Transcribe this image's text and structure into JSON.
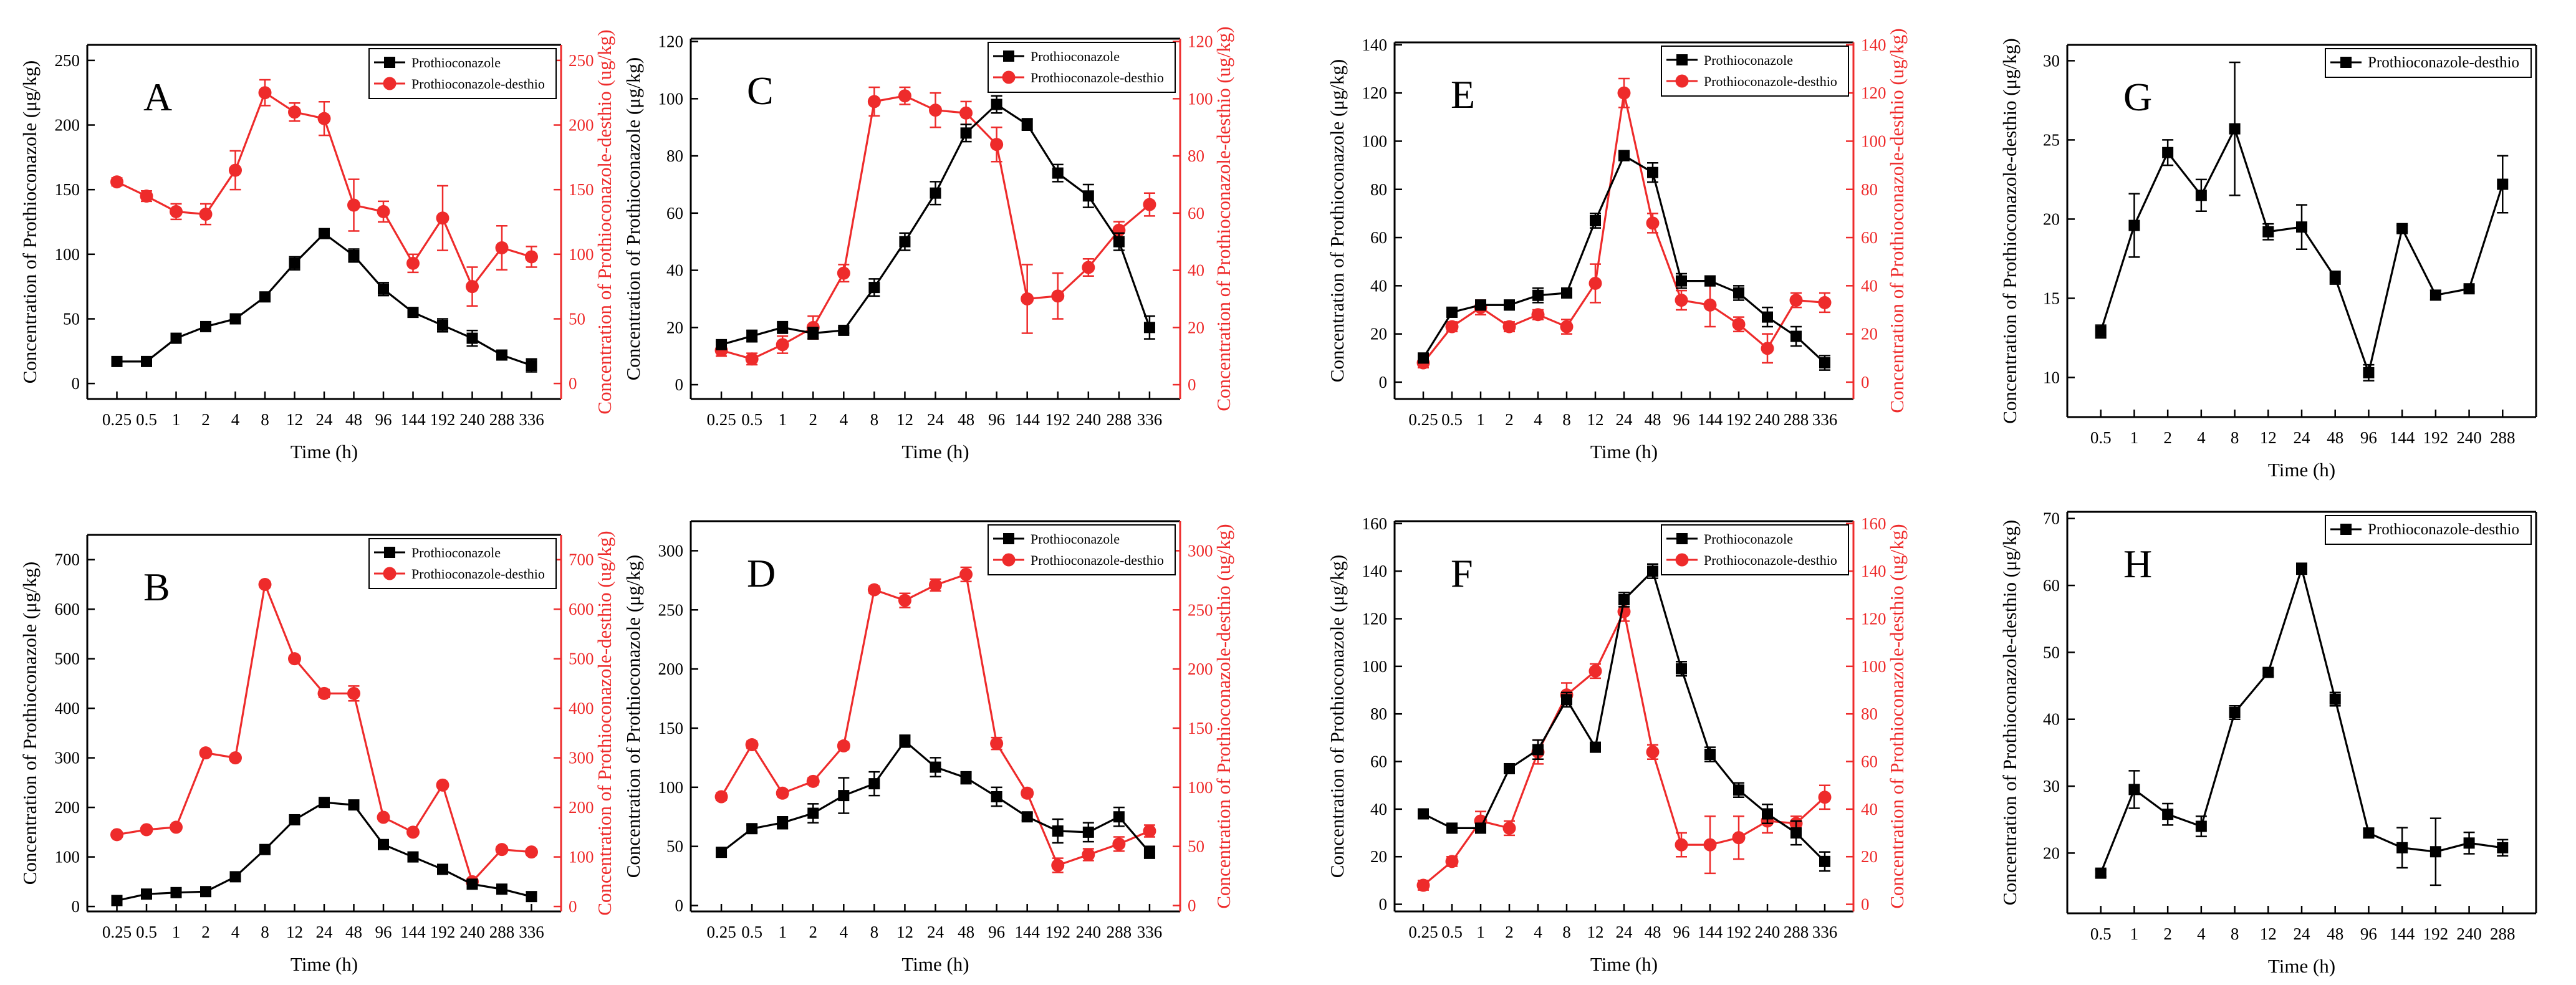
{
  "colors": {
    "black_series": "#000000",
    "red_series": "#ee2b2b",
    "axis": "#000000"
  },
  "chart_data": [
    {
      "panel": "A",
      "type": "line",
      "dual_axis": true,
      "xlabel": "Time (h)",
      "ylabel_left": "Concentration of Prothioconazole (μg/kg)",
      "ylabel_right": "Concentration of Prothioconazole-desthio (ug/kg)",
      "categories": [
        "0.25",
        "0.5",
        "1",
        "2",
        "4",
        "8",
        "12",
        "24",
        "48",
        "96",
        "144",
        "192",
        "240",
        "288",
        "336"
      ],
      "ylim_left": [
        -12,
        262
      ],
      "yticks_left": [
        0,
        50,
        100,
        150,
        200,
        250
      ],
      "ylim_right": [
        -12,
        262
      ],
      "yticks_right": [
        0,
        50,
        100,
        150,
        200,
        250
      ],
      "legend": "top-right",
      "series": [
        {
          "name": "Prothioconazole",
          "color": "black",
          "marker": "square",
          "axis": "left",
          "values": [
            17,
            17,
            35,
            44,
            50,
            67,
            93,
            116,
            99,
            73,
            55,
            45,
            35,
            22,
            14
          ],
          "errors": [
            2,
            2,
            2,
            2,
            2,
            3,
            5,
            3,
            5,
            5,
            3,
            5,
            6,
            3,
            5
          ]
        },
        {
          "name": "Prothioconazole-desthio",
          "color": "red",
          "marker": "circle",
          "axis": "right",
          "values": [
            156,
            145,
            133,
            131,
            165,
            225,
            210,
            205,
            138,
            133,
            93,
            128,
            75,
            105,
            98
          ],
          "errors": [
            3,
            4,
            6,
            8,
            15,
            10,
            7,
            13,
            20,
            8,
            7,
            25,
            15,
            17,
            8
          ]
        }
      ]
    },
    {
      "panel": "C",
      "type": "line",
      "dual_axis": true,
      "xlabel": "Time (h)",
      "ylabel_left": "Concentration of Prothioconazole (μg/kg)",
      "ylabel_right": "Concentration of Prothioconazole-desthio (ug/kg)",
      "categories": [
        "0.25",
        "0.5",
        "1",
        "2",
        "4",
        "8",
        "12",
        "24",
        "48",
        "96",
        "144",
        "192",
        "240",
        "288",
        "336"
      ],
      "ylim_left": [
        -5,
        121
      ],
      "yticks_left": [
        0,
        20,
        40,
        60,
        80,
        100,
        120
      ],
      "ylim_right": [
        -5,
        121
      ],
      "yticks_right": [
        0,
        20,
        40,
        60,
        80,
        100,
        120
      ],
      "legend": "top-right",
      "series": [
        {
          "name": "Prothioconazole",
          "color": "black",
          "marker": "square",
          "axis": "left",
          "values": [
            14,
            17,
            20,
            18,
            19,
            34,
            50,
            67,
            88,
            98,
            91,
            74,
            66,
            50,
            20
          ],
          "errors": [
            1,
            2,
            2,
            2,
            1,
            3,
            3,
            4,
            3,
            3,
            2,
            3,
            4,
            3,
            4
          ]
        },
        {
          "name": "Prothioconazole-desthio",
          "color": "red",
          "marker": "circle",
          "axis": "right",
          "values": [
            12,
            9,
            14,
            20,
            39,
            99,
            101,
            96,
            95,
            84,
            30,
            31,
            41,
            54,
            63
          ],
          "errors": [
            2,
            2,
            3,
            4,
            3,
            5,
            3,
            6,
            4,
            6,
            12,
            8,
            3,
            3,
            4
          ]
        }
      ]
    },
    {
      "panel": "E",
      "type": "line",
      "dual_axis": true,
      "xlabel": "Time (h)",
      "ylabel_left": "Concentration of Prothioconazole (μg/kg)",
      "ylabel_right": "Concentration of Prothioconazole-desthio (ug/kg)",
      "categories": [
        "0.25",
        "0.5",
        "1",
        "2",
        "4",
        "8",
        "12",
        "24",
        "48",
        "96",
        "144",
        "192",
        "240",
        "288",
        "336"
      ],
      "ylim_left": [
        -7,
        141
      ],
      "yticks_left": [
        0,
        20,
        40,
        60,
        80,
        100,
        120,
        140
      ],
      "ylim_right": [
        -7,
        141
      ],
      "yticks_right": [
        0,
        20,
        40,
        60,
        80,
        100,
        120,
        140
      ],
      "legend": "top-right",
      "series": [
        {
          "name": "Prothioconazole",
          "color": "black",
          "marker": "square",
          "axis": "left",
          "values": [
            10,
            29,
            32,
            32,
            36,
            37,
            67,
            94,
            87,
            42,
            42,
            37,
            27,
            19,
            8
          ],
          "errors": [
            2,
            2,
            2,
            2,
            3,
            2,
            3,
            2,
            4,
            3,
            2,
            3,
            4,
            4,
            3
          ]
        },
        {
          "name": "Prothioconazole-desthio",
          "color": "red",
          "marker": "circle",
          "axis": "right",
          "values": [
            8,
            23,
            31,
            23,
            28,
            23,
            41,
            120,
            66,
            34,
            32,
            24,
            14,
            34,
            33
          ],
          "errors": [
            2,
            2,
            3,
            2,
            2,
            3,
            8,
            6,
            4,
            4,
            9,
            3,
            6,
            3,
            4
          ]
        }
      ]
    },
    {
      "panel": "G",
      "type": "line",
      "dual_axis": false,
      "xlabel": "Time (h)",
      "ylabel_left": "Concentration of Prothioconazole-desthio (μg/kg)",
      "categories": [
        "0.5",
        "1",
        "2",
        "4",
        "8",
        "12",
        "24",
        "48",
        "96",
        "144",
        "192",
        "240",
        "288"
      ],
      "ylim_left": [
        7.5,
        31
      ],
      "yticks_left": [
        10,
        15,
        20,
        25,
        30
      ],
      "legend": "top-right",
      "series": [
        {
          "name": "Prothioconazole-desthio",
          "color": "black",
          "marker": "square",
          "axis": "left",
          "values": [
            12.9,
            19.6,
            24.2,
            21.5,
            25.7,
            19.2,
            19.5,
            16.3,
            10.3,
            19.4,
            15.2,
            15.6,
            22.2
          ],
          "errors": [
            0.4,
            2.0,
            0.8,
            1.0,
            4.2,
            0.5,
            1.4,
            0.4,
            0.5,
            0.2,
            0.3,
            0.2,
            1.8
          ]
        }
      ]
    },
    {
      "panel": "B",
      "type": "line",
      "dual_axis": true,
      "xlabel": "Time (h)",
      "ylabel_left": "Concentration of Prothioconazole (μg/kg)",
      "ylabel_right": "Concentration of Prothioconazole-desthio (ug/kg)",
      "categories": [
        "0.25",
        "0.5",
        "1",
        "2",
        "4",
        "8",
        "12",
        "24",
        "48",
        "96",
        "144",
        "192",
        "240",
        "288",
        "336"
      ],
      "ylim_left": [
        -10,
        750
      ],
      "yticks_left": [
        0,
        100,
        200,
        300,
        400,
        500,
        600,
        700
      ],
      "ylim_right": [
        -10,
        750
      ],
      "yticks_right": [
        0,
        100,
        200,
        300,
        400,
        500,
        600,
        700
      ],
      "legend": "top-right",
      "series": [
        {
          "name": "Prothioconazole",
          "color": "black",
          "marker": "square",
          "axis": "left",
          "values": [
            12,
            25,
            28,
            30,
            60,
            115,
            175,
            210,
            205,
            125,
            100,
            75,
            45,
            35,
            20
          ],
          "errors": [
            3,
            3,
            3,
            3,
            3,
            5,
            5,
            5,
            5,
            8,
            5,
            5,
            5,
            5,
            5
          ]
        },
        {
          "name": "Prothioconazole-desthio",
          "color": "red",
          "marker": "circle",
          "axis": "right",
          "values": [
            145,
            155,
            160,
            310,
            300,
            650,
            500,
            430,
            430,
            180,
            150,
            245,
            50,
            115,
            110
          ],
          "errors": [
            5,
            5,
            5,
            5,
            5,
            5,
            5,
            8,
            15,
            5,
            5,
            5,
            5,
            5,
            5
          ]
        }
      ]
    },
    {
      "panel": "D",
      "type": "line",
      "dual_axis": true,
      "xlabel": "Time (h)",
      "ylabel_left": "Concentration of Prothioconazole (μg/kg)",
      "ylabel_right": "Concentration of Prothioconazole-desthio (ug/kg)",
      "categories": [
        "0.25",
        "0.5",
        "1",
        "2",
        "4",
        "8",
        "12",
        "24",
        "48",
        "96",
        "144",
        "192",
        "240",
        "288",
        "336"
      ],
      "ylim_left": [
        -5,
        325
      ],
      "yticks_left": [
        0,
        50,
        100,
        150,
        200,
        250,
        300
      ],
      "ylim_right": [
        -5,
        325
      ],
      "yticks_right": [
        0,
        50,
        100,
        150,
        200,
        250,
        300
      ],
      "legend": "top-right",
      "series": [
        {
          "name": "Prothioconazole",
          "color": "black",
          "marker": "square",
          "axis": "left",
          "values": [
            45,
            65,
            70,
            78,
            93,
            103,
            139,
            117,
            108,
            92,
            75,
            63,
            62,
            75,
            45
          ],
          "errors": [
            3,
            3,
            5,
            8,
            15,
            10,
            5,
            8,
            5,
            8,
            3,
            10,
            8,
            8,
            5
          ]
        },
        {
          "name": "Prothioconazole-desthio",
          "color": "red",
          "marker": "circle",
          "axis": "right",
          "values": [
            92,
            136,
            95,
            105,
            135,
            267,
            258,
            271,
            280,
            137,
            95,
            34,
            43,
            52,
            63
          ],
          "errors": [
            3,
            3,
            3,
            3,
            3,
            3,
            6,
            5,
            6,
            5,
            3,
            6,
            5,
            6,
            5
          ]
        }
      ]
    },
    {
      "panel": "F",
      "type": "line",
      "dual_axis": true,
      "xlabel": "Time (h)",
      "ylabel_left": "Concentration of Prothioconazole (μg/kg)",
      "ylabel_right": "Concentration of Prothioconazole-desthio (ug/kg)",
      "categories": [
        "0.25",
        "0.5",
        "1",
        "2",
        "4",
        "8",
        "12",
        "24",
        "48",
        "96",
        "144",
        "192",
        "240",
        "288",
        "336"
      ],
      "ylim_left": [
        -3,
        161
      ],
      "yticks_left": [
        0,
        20,
        40,
        60,
        80,
        100,
        120,
        140,
        160
      ],
      "ylim_right": [
        -3,
        161
      ],
      "yticks_right": [
        0,
        20,
        40,
        60,
        80,
        100,
        120,
        140,
        160
      ],
      "legend": "top-right",
      "series": [
        {
          "name": "Prothioconazole",
          "color": "black",
          "marker": "square",
          "axis": "left",
          "values": [
            38,
            32,
            32,
            57,
            65,
            86,
            66,
            128,
            140,
            99,
            63,
            48,
            38,
            30,
            18
          ],
          "errors": [
            1,
            2,
            2,
            2,
            4,
            3,
            2,
            3,
            3,
            3,
            3,
            3,
            4,
            5,
            4
          ]
        },
        {
          "name": "Prothioconazole-desthio",
          "color": "red",
          "marker": "circle",
          "axis": "right",
          "values": [
            8,
            18,
            35,
            32,
            64,
            88,
            98,
            123,
            64,
            25,
            25,
            28,
            35,
            34,
            45
          ],
          "errors": [
            2,
            2,
            4,
            3,
            5,
            5,
            3,
            4,
            3,
            5,
            12,
            9,
            5,
            3,
            5
          ]
        }
      ]
    },
    {
      "panel": "H",
      "type": "line",
      "dual_axis": false,
      "xlabel": "Time (h)",
      "ylabel_left": "Concentration of Prothioconazole-desthio (μg/kg)",
      "categories": [
        "0.5",
        "1",
        "2",
        "4",
        "8",
        "12",
        "24",
        "48",
        "96",
        "144",
        "192",
        "240",
        "288"
      ],
      "ylim_left": [
        11,
        71
      ],
      "yticks_left": [
        20,
        30,
        40,
        50,
        60,
        70
      ],
      "legend": "top-right",
      "series": [
        {
          "name": "Prothioconazole-desthio",
          "color": "black",
          "marker": "square",
          "axis": "left",
          "values": [
            17,
            29.5,
            25.8,
            24,
            41,
            47,
            62.5,
            43,
            23,
            20.8,
            20.2,
            21.5,
            20.8
          ],
          "errors": [
            0.5,
            2.8,
            1.6,
            1.5,
            1,
            0.5,
            0.8,
            1,
            0.7,
            3,
            5,
            1.6,
            1.2
          ]
        }
      ]
    }
  ]
}
